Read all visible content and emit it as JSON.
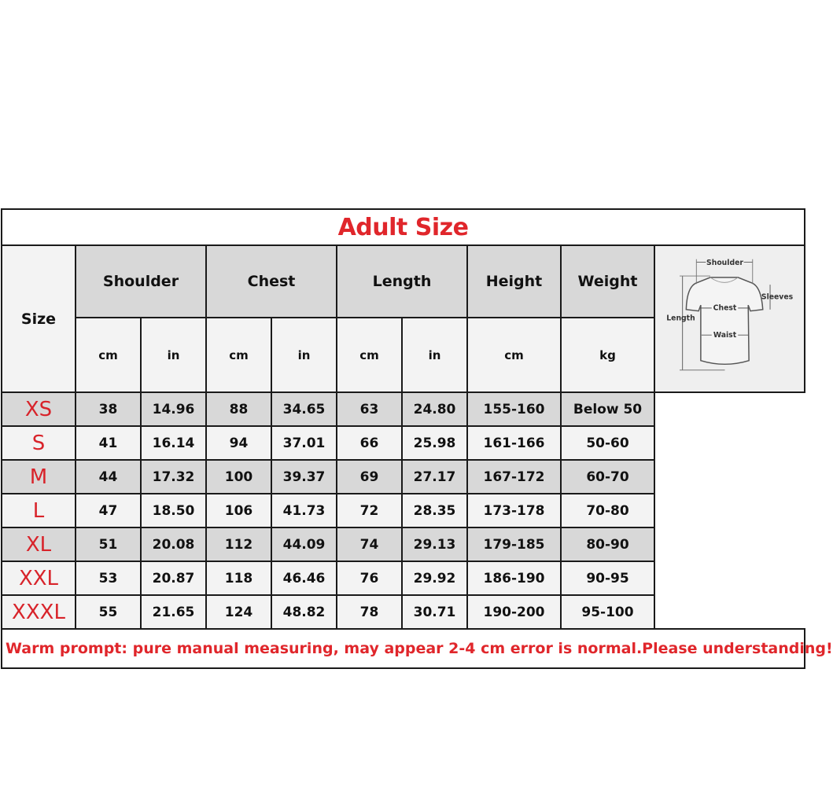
{
  "title": "Adult Size",
  "colors": {
    "title": "#e0262b",
    "size_label": "#d8232a",
    "header_bg": "#d8d8d8",
    "light_bg": "#f3f3f3"
  },
  "headers": {
    "size": "Size",
    "groups": [
      "Shoulder",
      "Chest",
      "Length",
      "Height",
      "Weight"
    ],
    "units": [
      "cm",
      "in",
      "cm",
      "in",
      "cm",
      "in",
      "cm",
      "kg"
    ]
  },
  "rows": [
    {
      "size": "XS",
      "values": [
        "38",
        "14.96",
        "88",
        "34.65",
        "63",
        "24.80",
        "155-160",
        "Below 50"
      ]
    },
    {
      "size": "S",
      "values": [
        "41",
        "16.14",
        "94",
        "37.01",
        "66",
        "25.98",
        "161-166",
        "50-60"
      ]
    },
    {
      "size": "M",
      "values": [
        "44",
        "17.32",
        "100",
        "39.37",
        "69",
        "27.17",
        "167-172",
        "60-70"
      ]
    },
    {
      "size": "L",
      "values": [
        "47",
        "18.50",
        "106",
        "41.73",
        "72",
        "28.35",
        "173-178",
        "70-80"
      ]
    },
    {
      "size": "XL",
      "values": [
        "51",
        "20.08",
        "112",
        "44.09",
        "74",
        "29.13",
        "179-185",
        "80-90"
      ]
    },
    {
      "size": "XXL",
      "values": [
        "53",
        "20.87",
        "118",
        "46.46",
        "76",
        "29.92",
        "186-190",
        "90-95"
      ]
    },
    {
      "size": "XXXL",
      "values": [
        "55",
        "21.65",
        "124",
        "48.82",
        "78",
        "30.71",
        "190-200",
        "95-100"
      ]
    }
  ],
  "diagram": {
    "shoulder": "Shoulder",
    "sleeves": "Sleeves",
    "chest": "Chest",
    "length": "Length",
    "waist": "Waist"
  },
  "note": "Warm prompt: pure manual measuring, may appear 2-4 cm error is normal.Please understanding!"
}
